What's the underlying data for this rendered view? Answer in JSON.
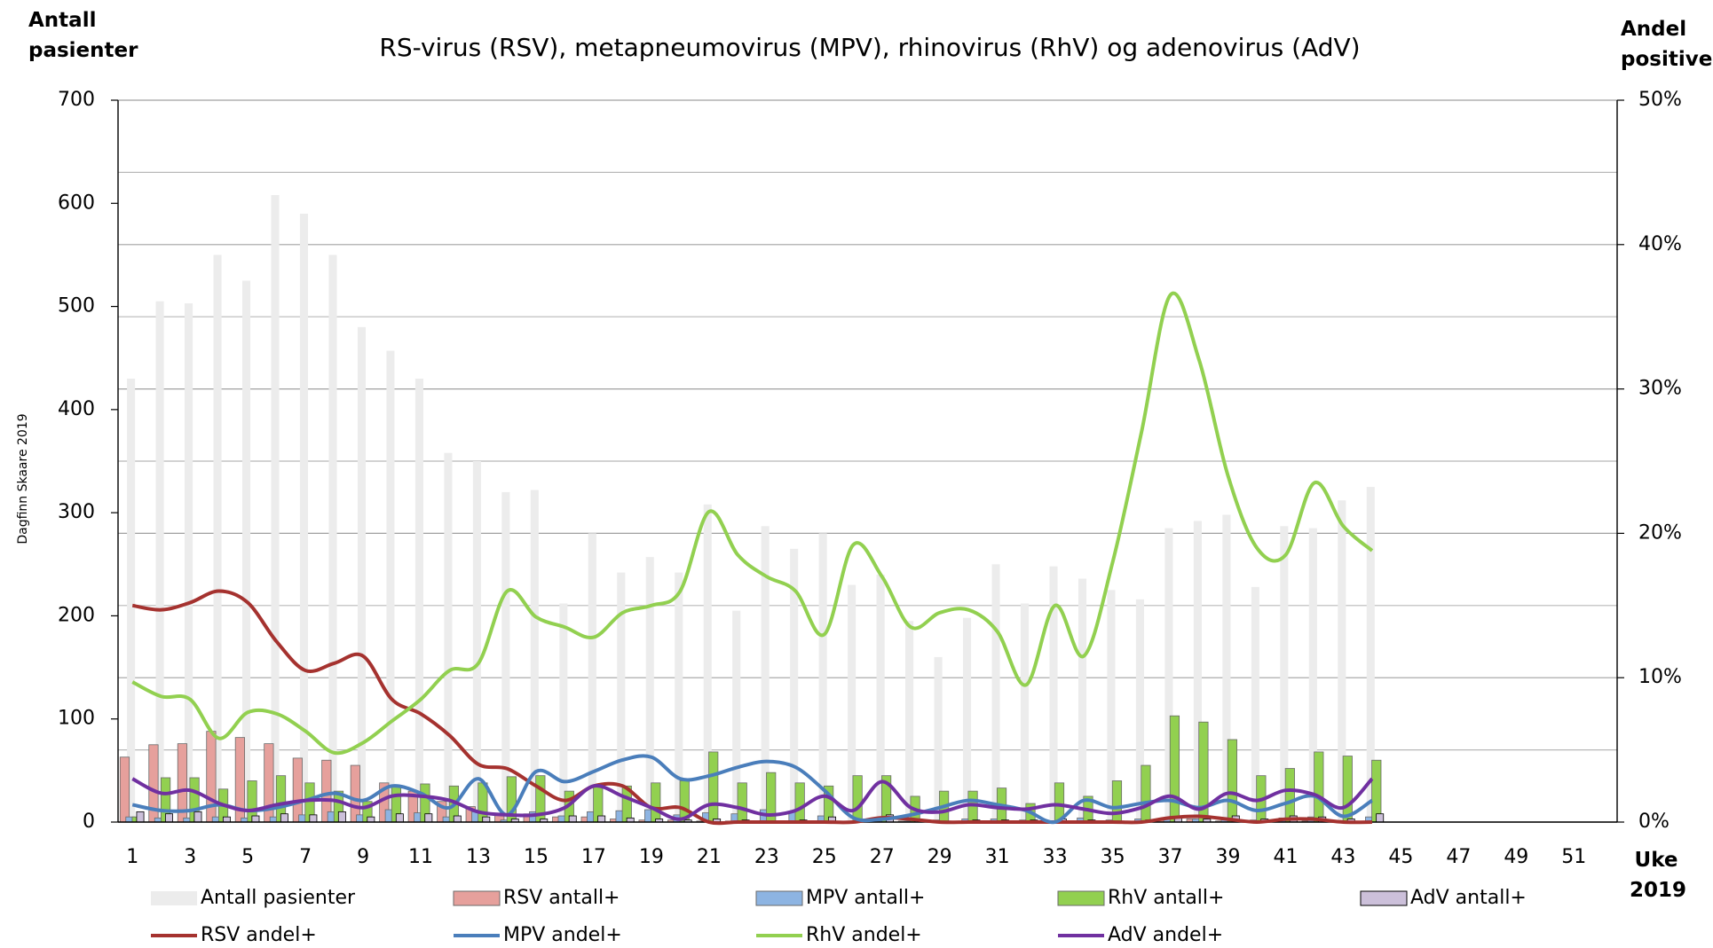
{
  "chart_data": {
    "type": "combo",
    "title": "RS-virus (RSV), metapneumovirus (MPV), rhinovirus (RhV) og adenovirus (AdV)",
    "ylabel": "Antall pasienter",
    "y2label": "Andel positive",
    "xlabel": "Uke 2019",
    "watermark": "Dagfinn Skaare 2019",
    "categories": [
      1,
      null,
      3,
      null,
      5,
      null,
      7,
      null,
      9,
      null,
      11,
      null,
      13,
      null,
      15,
      null,
      17,
      null,
      19,
      null,
      21,
      null,
      23,
      null,
      25,
      null,
      27,
      null,
      29,
      null,
      31,
      null,
      33,
      null,
      35,
      null,
      37,
      null,
      39,
      null,
      41,
      null,
      43,
      null,
      45,
      null,
      47,
      null,
      49,
      null,
      51,
      null
    ],
    "ylim": [
      0,
      700
    ],
    "yticks": [
      0,
      100,
      200,
      300,
      400,
      500,
      600,
      700
    ],
    "y2lim": [
      0,
      50
    ],
    "y2ticks": [
      {
        "value": 0,
        "label": "0%"
      },
      {
        "value": 10,
        "label": "10%"
      },
      {
        "value": 20,
        "label": "20%"
      },
      {
        "value": 30,
        "label": "30%"
      },
      {
        "value": 40,
        "label": "40%"
      },
      {
        "value": 50,
        "label": "50%"
      }
    ],
    "y2_minor_grid": [
      5,
      15,
      25,
      35,
      45
    ],
    "grid": true,
    "legend": "bottom",
    "series": [
      {
        "name": "Antall pasienter",
        "type": "bar",
        "color": "#ececec",
        "values": [
          430,
          505,
          503,
          550,
          525,
          608,
          590,
          550,
          480,
          457,
          430,
          358,
          350,
          320,
          322,
          212,
          280,
          242,
          257,
          242,
          308,
          205,
          287,
          265,
          280,
          230,
          240,
          195,
          160,
          198,
          250,
          212,
          248,
          236,
          225,
          216,
          285,
          292,
          298,
          228,
          287,
          285,
          312,
          325,
          null,
          null,
          null,
          null,
          null,
          null,
          null,
          null
        ]
      },
      {
        "name": "RSV antall+",
        "type": "bar",
        "color": "#e6a09c",
        "values": [
          63,
          75,
          76,
          88,
          82,
          76,
          62,
          60,
          55,
          38,
          30,
          20,
          15,
          8,
          8,
          5,
          5,
          3,
          2,
          2,
          1,
          1,
          0,
          0,
          1,
          0,
          2,
          1,
          0,
          0,
          0,
          0,
          0,
          0,
          0,
          0,
          2,
          3,
          1,
          0,
          1,
          1,
          0,
          0,
          null,
          null,
          null,
          null,
          null,
          null,
          null,
          null
        ]
      },
      {
        "name": "MPV antall+",
        "type": "bar",
        "color": "#8db4e2",
        "values": [
          5,
          4,
          4,
          5,
          4,
          5,
          7,
          10,
          7,
          12,
          9,
          5,
          10,
          2,
          10,
          6,
          10,
          11,
          12,
          7,
          9,
          8,
          12,
          10,
          6,
          1,
          1,
          1,
          2,
          3,
          3,
          2,
          0,
          4,
          2,
          3,
          4,
          3,
          4,
          2,
          4,
          5,
          1,
          5,
          null,
          null,
          null,
          null,
          null,
          null,
          null,
          null
        ]
      },
      {
        "name": "RhV antall+",
        "type": "bar",
        "color": "#92d050",
        "values": [
          5,
          43,
          43,
          32,
          40,
          45,
          38,
          30,
          20,
          35,
          37,
          35,
          38,
          44,
          45,
          30,
          35,
          35,
          38,
          40,
          68,
          38,
          48,
          38,
          35,
          45,
          45,
          25,
          30,
          30,
          33,
          18,
          38,
          25,
          40,
          55,
          103,
          97,
          80,
          45,
          52,
          68,
          64,
          60,
          null,
          null,
          null,
          null,
          null,
          null,
          null,
          null
        ]
      },
      {
        "name": "AdV antall+",
        "type": "bar",
        "color": "#ccc0da",
        "values": [
          10,
          8,
          10,
          5,
          6,
          8,
          7,
          10,
          5,
          8,
          8,
          6,
          5,
          3,
          3,
          6,
          6,
          4,
          3,
          2,
          3,
          2,
          1,
          2,
          5,
          2,
          7,
          2,
          1,
          2,
          2,
          2,
          3,
          2,
          1,
          2,
          5,
          3,
          6,
          3,
          6,
          5,
          3,
          8,
          null,
          null,
          null,
          null,
          null,
          null,
          null,
          null
        ]
      },
      {
        "name": "RSV andel+",
        "type": "line",
        "axis": "y2",
        "color": "#a5322f",
        "values": [
          15,
          14.7,
          15.2,
          16,
          15.2,
          12.5,
          10.5,
          11,
          11.5,
          8.5,
          7.5,
          6,
          4,
          3.7,
          2.5,
          1.5,
          2.5,
          2.5,
          1,
          1,
          0,
          0,
          0,
          0,
          0,
          0,
          0.3,
          0.2,
          0,
          0,
          0,
          0,
          0,
          0,
          0,
          0,
          0.3,
          0.4,
          0.2,
          0,
          0.2,
          0.2,
          0,
          0,
          null,
          null,
          null,
          null,
          null,
          null,
          null,
          null
        ]
      },
      {
        "name": "MPV andel+",
        "type": "line",
        "axis": "y2",
        "color": "#4a7ebb",
        "values": [
          1.2,
          0.8,
          0.8,
          1.2,
          0.8,
          1,
          1.5,
          2,
          1.5,
          2.5,
          2,
          1,
          3,
          0.5,
          3.5,
          2.8,
          3.5,
          4.3,
          4.5,
          3,
          3.2,
          3.8,
          4.2,
          3.8,
          2.2,
          0.3,
          0.2,
          0.5,
          1,
          1.5,
          1.2,
          0.8,
          0,
          1.5,
          1,
          1.3,
          1.5,
          1,
          1.5,
          0.8,
          1.3,
          1.8,
          0.4,
          1.5,
          null,
          null,
          null,
          null,
          null,
          null,
          null,
          null
        ]
      },
      {
        "name": "RhV andel+",
        "type": "line",
        "axis": "y2",
        "color": "#92d050",
        "values": [
          9.7,
          8.7,
          8.5,
          5.8,
          7.6,
          7.5,
          6.3,
          4.8,
          5.5,
          7,
          8.5,
          10.5,
          11,
          16,
          14.2,
          13.5,
          12.8,
          14.5,
          15,
          16,
          21.5,
          18.5,
          17,
          16,
          13,
          19.2,
          17,
          13.5,
          14.5,
          14.7,
          13.2,
          9.5,
          15,
          11.5,
          18,
          27,
          36.5,
          32,
          24,
          19,
          18.5,
          23.5,
          20.5,
          18.8,
          null,
          null,
          null,
          null,
          null,
          null,
          null,
          null
        ]
      },
      {
        "name": "AdV andel+",
        "type": "line",
        "axis": "y2",
        "color": "#7030a0",
        "values": [
          3,
          2,
          2.2,
          1.3,
          0.8,
          1.2,
          1.5,
          1.5,
          1,
          1.8,
          1.8,
          1.5,
          0.7,
          0.5,
          0.5,
          1,
          2.5,
          1.8,
          1,
          0.2,
          1.2,
          1,
          0.5,
          0.8,
          1.8,
          0.8,
          2.8,
          1,
          0.7,
          1.2,
          1,
          0.9,
          1.2,
          0.9,
          0.6,
          1,
          1.8,
          0.9,
          2,
          1.5,
          2.2,
          1.9,
          1,
          3,
          null,
          null,
          null,
          null,
          null,
          null,
          null,
          null
        ]
      }
    ]
  }
}
